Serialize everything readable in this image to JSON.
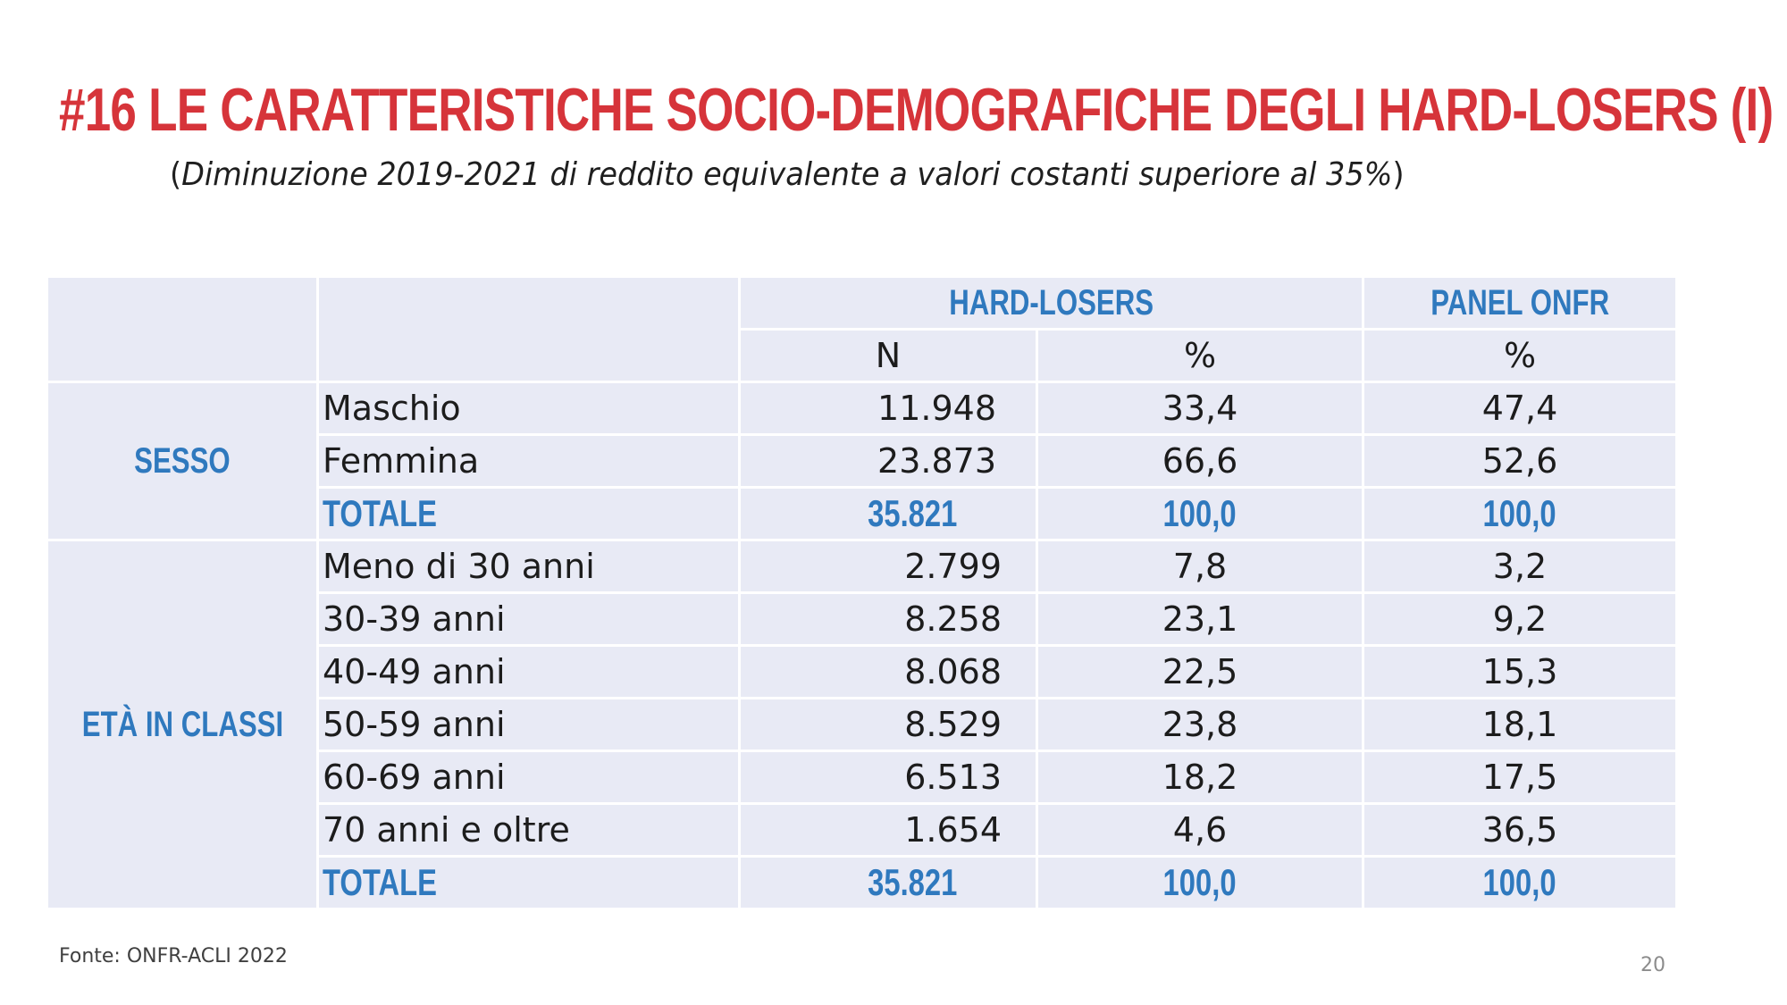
{
  "slide": {
    "title": "#16 Le caratteristiche socio-demografiche degli Hard-losers (I)",
    "subtitle_open": "(",
    "subtitle_italic": "Diminuzione 2019-2021 di reddito equivalente a valori costanti superiore al 35%",
    "subtitle_close": ")",
    "source": "Fonte: ONFR-ACLI 2022",
    "page_number": "20"
  },
  "table": {
    "group_headers": {
      "hard_losers": "HARD-LOSERS",
      "panel_onfr": "PANEL ONFR"
    },
    "sub_headers": {
      "n": "N",
      "pct_hard": "%",
      "pct_panel": "%"
    },
    "sections": [
      {
        "category": "SESSO",
        "rows": [
          {
            "label": "Maschio",
            "n": "11.948",
            "pct": "33,4",
            "panel_pct": "47,4"
          },
          {
            "label": "Femmina",
            "n": "23.873",
            "pct": "66,6",
            "panel_pct": "52,6"
          }
        ],
        "total": {
          "label": "TOTALE",
          "n": "35.821",
          "pct": "100,0",
          "panel_pct": "100,0"
        }
      },
      {
        "category": "ETÀ IN CLASSI",
        "rows": [
          {
            "label": "Meno di 30 anni",
            "n": "2.799",
            "pct": "7,8",
            "panel_pct": "3,2"
          },
          {
            "label": "30-39 anni",
            "n": "8.258",
            "pct": "23,1",
            "panel_pct": "9,2"
          },
          {
            "label": "40-49 anni",
            "n": "8.068",
            "pct": "22,5",
            "panel_pct": "15,3"
          },
          {
            "label": "50-59 anni",
            "n": "8.529",
            "pct": "23,8",
            "panel_pct": "18,1"
          },
          {
            "label": "60-69 anni",
            "n": "6.513",
            "pct": "18,2",
            "panel_pct": "17,5"
          },
          {
            "label": "70 anni e oltre",
            "n": "1.654",
            "pct": "4,6",
            "panel_pct": "36,5"
          }
        ],
        "total": {
          "label": "TOTALE",
          "n": "35.821",
          "pct": "100,0",
          "panel_pct": "100,0"
        }
      }
    ]
  },
  "colors": {
    "title": "#d6343a",
    "accent_blue": "#2f79be",
    "cell_background": "#e8eaf5"
  }
}
